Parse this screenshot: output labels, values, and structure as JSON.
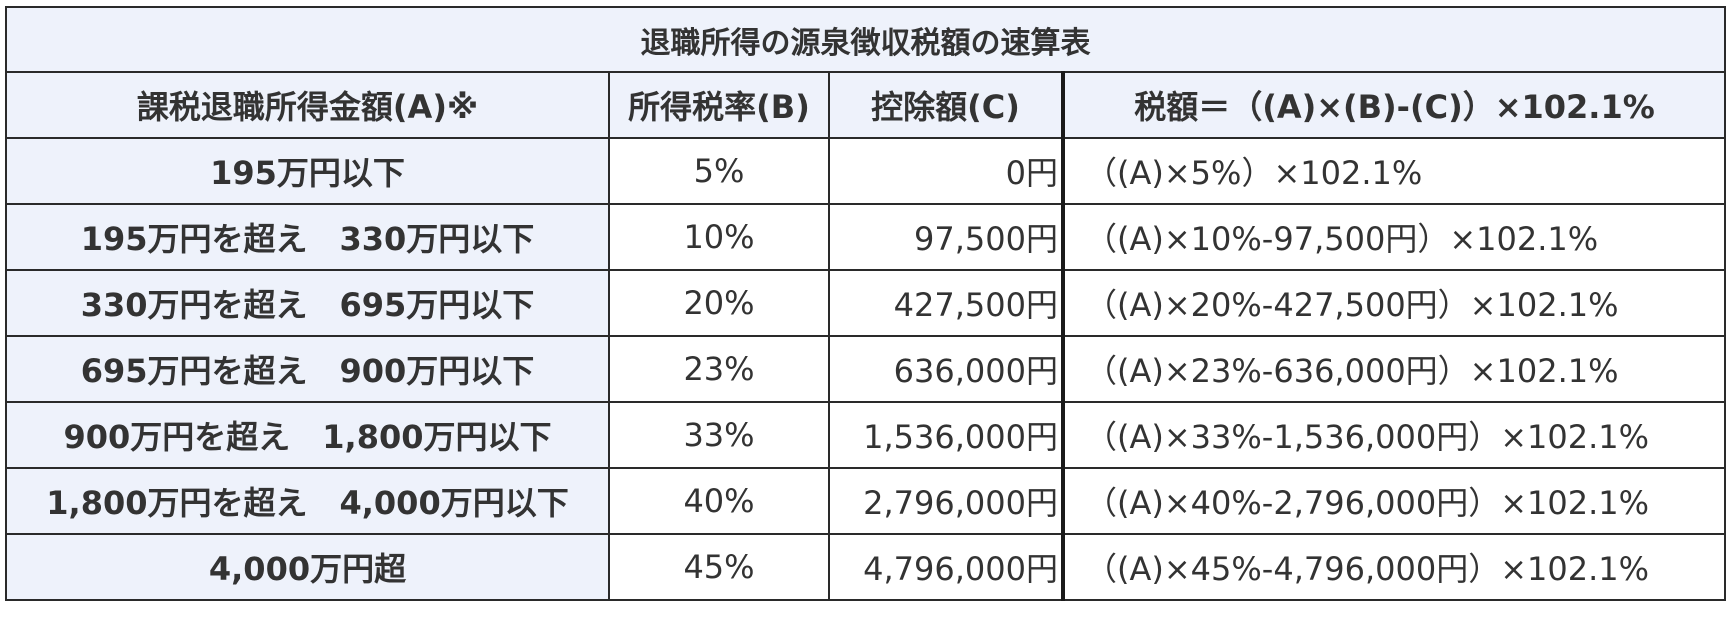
{
  "table": {
    "title": "退職所得の源泉徴収税額の速算表",
    "headers": [
      "課税退職所得金額(A)※",
      "所得税率(B)",
      "控除額(C)",
      "税額＝（(A)×(B)-(C)）×102.1%"
    ],
    "rows": [
      {
        "range": "195万円以下",
        "rate": "5%",
        "deduction": "0円",
        "formula": "（(A)×5%）×102.1%"
      },
      {
        "range": "195万円を超え　330万円以下",
        "rate": "10%",
        "deduction": "97,500円",
        "formula": "（(A)×10%-97,500円）×102.1%"
      },
      {
        "range": "330万円を超え　695万円以下",
        "rate": "20%",
        "deduction": "427,500円",
        "formula": "（(A)×20%-427,500円）×102.1%"
      },
      {
        "range": "695万円を超え　900万円以下",
        "rate": "23%",
        "deduction": "636,000円",
        "formula": "（(A)×23%-636,000円）×102.1%"
      },
      {
        "range": "900万円を超え　1,800万円以下",
        "rate": "33%",
        "deduction": "1,536,000円",
        "formula": "（(A)×33%-1,536,000円）×102.1%"
      },
      {
        "range": "1,800万円を超え　4,000万円以下",
        "rate": "40%",
        "deduction": "2,796,000円",
        "formula": "（(A)×40%-2,796,000円）×102.1%"
      },
      {
        "range": "4,000万円超",
        "rate": "45%",
        "deduction": "4,796,000円",
        "formula": "（(A)×45%-4,796,000円）×102.1%"
      }
    ]
  }
}
